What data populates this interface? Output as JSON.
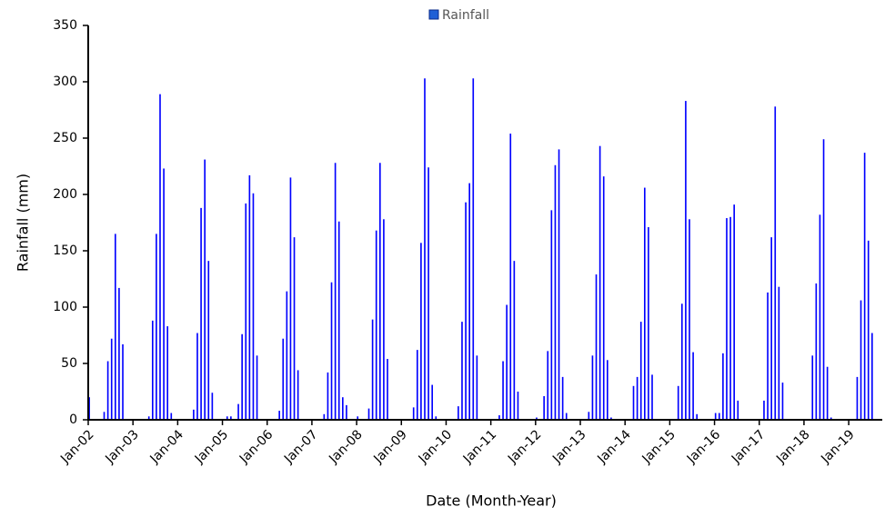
{
  "chart_data": {
    "type": "bar",
    "x_label": "Date (Month-Year)",
    "y_label": "Rainfall (mm)",
    "categories": [
      "Jan-02",
      null,
      null,
      null,
      null,
      null,
      null,
      null,
      null,
      null,
      null,
      null,
      "Jan-03",
      null,
      null,
      null,
      null,
      null,
      null,
      null,
      null,
      null,
      null,
      null,
      "Jan-04",
      null,
      null,
      null,
      null,
      null,
      null,
      null,
      null,
      null,
      null,
      null,
      "Jan-05",
      null,
      null,
      null,
      null,
      null,
      null,
      null,
      null,
      null,
      null,
      null,
      "Jan-06",
      null,
      null,
      null,
      null,
      null,
      null,
      null,
      null,
      null,
      null,
      null,
      "Jan-07",
      null,
      null,
      null,
      null,
      null,
      null,
      null,
      null,
      null,
      null,
      null,
      "Jan-08",
      null,
      null,
      null,
      null,
      null,
      null,
      null,
      null,
      null,
      null,
      null,
      "Jan-09",
      null,
      null,
      null,
      null,
      null,
      null,
      null,
      null,
      null,
      null,
      null,
      "Jan-10",
      null,
      null,
      null,
      null,
      null,
      null,
      null,
      null,
      null,
      null,
      null,
      "Jan-11",
      null,
      null,
      null,
      null,
      null,
      null,
      null,
      null,
      null,
      null,
      null,
      "Jan-12",
      null,
      null,
      null,
      null,
      null,
      null,
      null,
      null,
      null,
      null,
      null,
      "Jan-13",
      null,
      null,
      null,
      null,
      null,
      null,
      null,
      null,
      null,
      null,
      null,
      "Jan-14",
      null,
      null,
      null,
      null,
      null,
      null,
      null,
      null,
      null,
      null,
      null,
      "Jan-15",
      null,
      null,
      null,
      null,
      null,
      null,
      null,
      null,
      null,
      null,
      null,
      "Jan-16",
      null,
      null,
      null,
      null,
      null,
      null,
      null,
      null,
      null,
      null,
      null,
      "Jan-17",
      null,
      null,
      null,
      null,
      null,
      null,
      null,
      null,
      null,
      null,
      null,
      "Jan-18",
      null,
      null,
      null,
      null,
      null,
      null,
      null,
      null,
      null,
      null,
      null,
      "Jan-19",
      null,
      null,
      null,
      null,
      null,
      null,
      null,
      null
    ],
    "series": [
      {
        "name": "Rainfall",
        "color": "#0000ff",
        "values": [
          20,
          0,
          0,
          0,
          7,
          52,
          72,
          165,
          117,
          67,
          0,
          0,
          0,
          0,
          0,
          0,
          3,
          88,
          165,
          289,
          223,
          83,
          6,
          0,
          0,
          0,
          0,
          0,
          9,
          77,
          188,
          231,
          141,
          24,
          0,
          0,
          0,
          3,
          3,
          0,
          14,
          76,
          192,
          217,
          201,
          57,
          0,
          0,
          0,
          0,
          0,
          8,
          72,
          114,
          215,
          162,
          44,
          0,
          0,
          0,
          0,
          0,
          0,
          5,
          42,
          122,
          228,
          176,
          20,
          13,
          0,
          0,
          3,
          0,
          0,
          10,
          89,
          168,
          228,
          178,
          54,
          0,
          0,
          0,
          0,
          0,
          0,
          11,
          62,
          157,
          303,
          224,
          31,
          3,
          0,
          0,
          0,
          0,
          0,
          12,
          87,
          193,
          210,
          303,
          57,
          0,
          0,
          0,
          0,
          0,
          4,
          52,
          102,
          254,
          141,
          25,
          0,
          0,
          0,
          0,
          2,
          0,
          21,
          61,
          186,
          226,
          240,
          38,
          6,
          0,
          0,
          0,
          0,
          0,
          7,
          57,
          129,
          243,
          216,
          53,
          2,
          0,
          0,
          0,
          0,
          0,
          30,
          38,
          87,
          206,
          171,
          40,
          0,
          0,
          0,
          0,
          0,
          0,
          30,
          103,
          283,
          178,
          60,
          5,
          0,
          0,
          0,
          0,
          6,
          6,
          59,
          179,
          180,
          191,
          17,
          0,
          0,
          0,
          0,
          0,
          0,
          17,
          113,
          162,
          278,
          118,
          33,
          0,
          0,
          0,
          0,
          0,
          0,
          0,
          57,
          121,
          182,
          249,
          47,
          2,
          0,
          0,
          0,
          0,
          0,
          0,
          38,
          106,
          237,
          159,
          77,
          0,
          0
        ]
      }
    ],
    "ylim": [
      0,
      350
    ],
    "yticks": [
      0,
      50,
      100,
      150,
      200,
      250,
      300,
      350
    ],
    "grid": false,
    "legend": "top"
  }
}
